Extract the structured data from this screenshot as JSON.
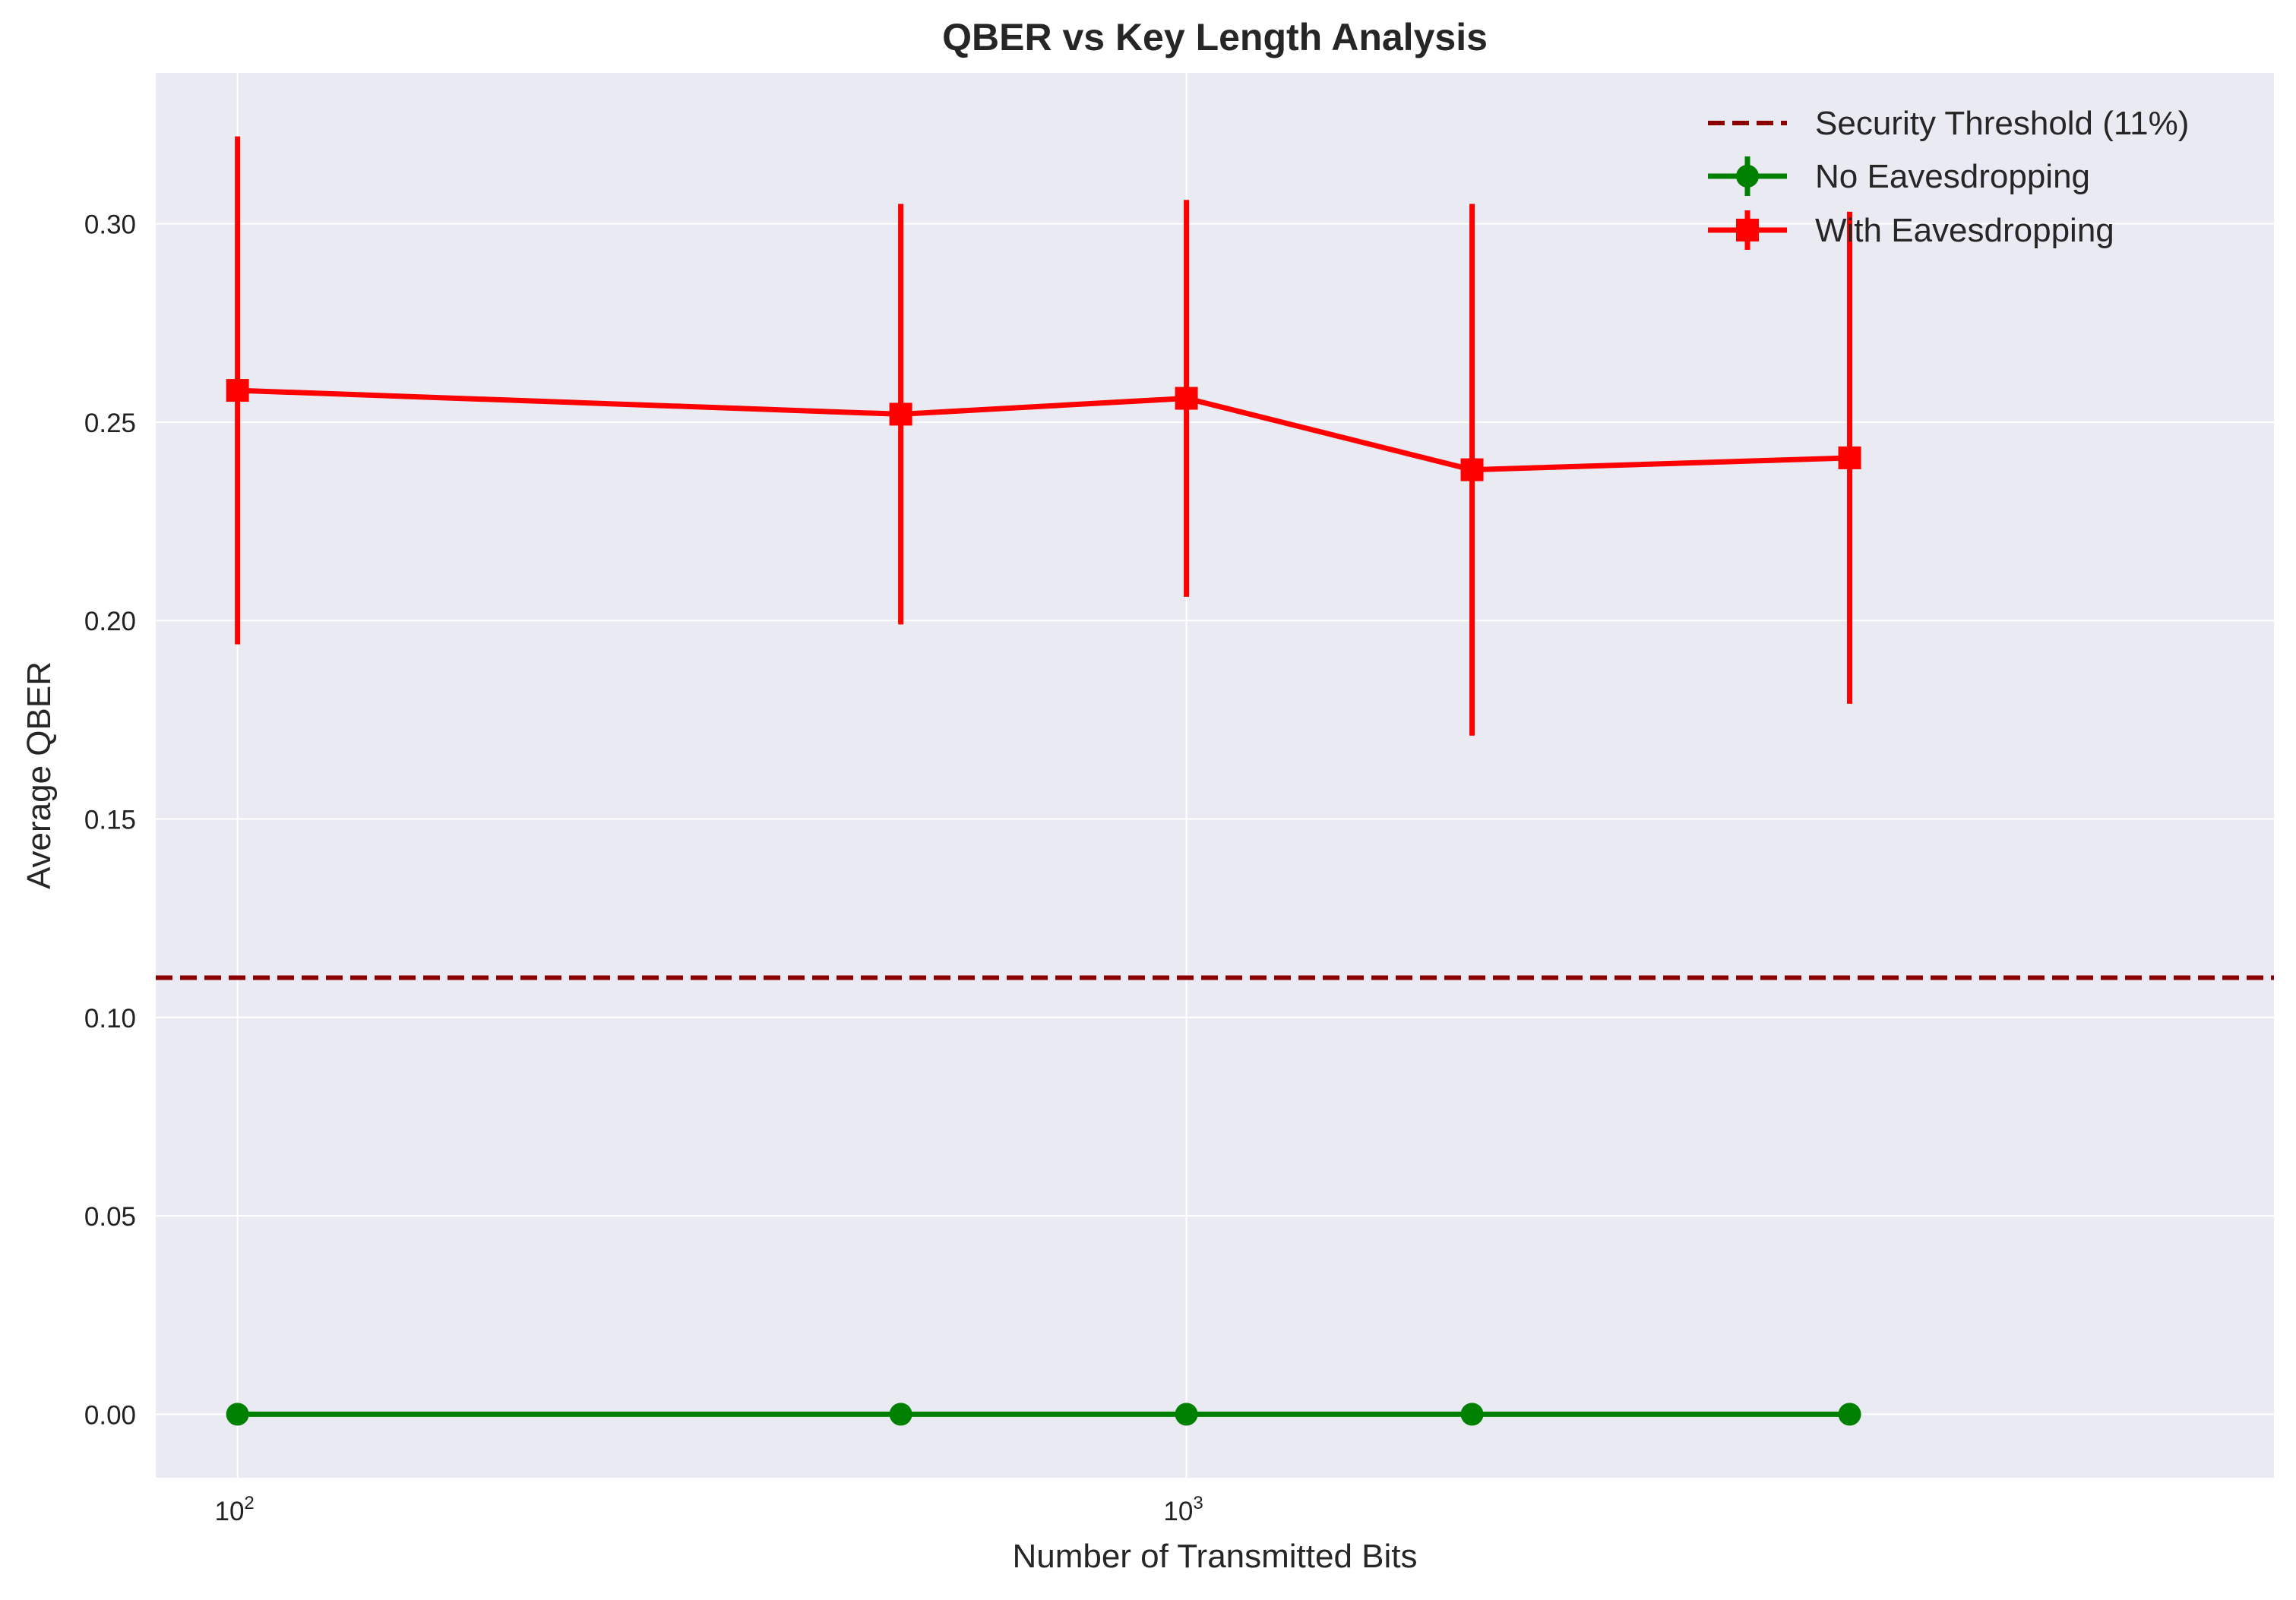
{
  "chart_data": {
    "type": "line",
    "title": "QBER vs Key Length Analysis",
    "xlabel": "Number of Transmitted Bits",
    "ylabel": "Average QBER",
    "x_scale": "log",
    "x": [
      100,
      500,
      1000,
      2000,
      5000
    ],
    "xlim": [
      82,
      14000
    ],
    "ylim": [
      -0.016,
      0.338
    ],
    "yticks": [
      0.0,
      0.05,
      0.1,
      0.15,
      0.2,
      0.25,
      0.3
    ],
    "ytick_labels": [
      "0.00",
      "0.05",
      "0.10",
      "0.15",
      "0.20",
      "0.25",
      "0.30"
    ],
    "xticks": [
      100,
      1000
    ],
    "xtick_labels": [
      {
        "base": "10",
        "exp": "2"
      },
      {
        "base": "10",
        "exp": "3"
      }
    ],
    "grid": true,
    "legend_position": "top-right",
    "threshold": {
      "name": "Security Threshold (11%)",
      "value": 0.11,
      "color": "#8b0000",
      "style": "dashed"
    },
    "series": [
      {
        "name": "No Eavesdropping",
        "color": "#008000",
        "marker": "circle",
        "values": [
          0.0,
          0.0,
          0.0,
          0.0,
          0.0
        ],
        "errors": [
          0.0,
          0.0,
          0.0,
          0.0,
          0.0
        ]
      },
      {
        "name": "With Eavesdropping",
        "color": "#ff0000",
        "marker": "square",
        "values": [
          0.258,
          0.252,
          0.256,
          0.238,
          0.241
        ],
        "errors": [
          0.064,
          0.053,
          0.05,
          0.067,
          0.062
        ]
      }
    ]
  }
}
